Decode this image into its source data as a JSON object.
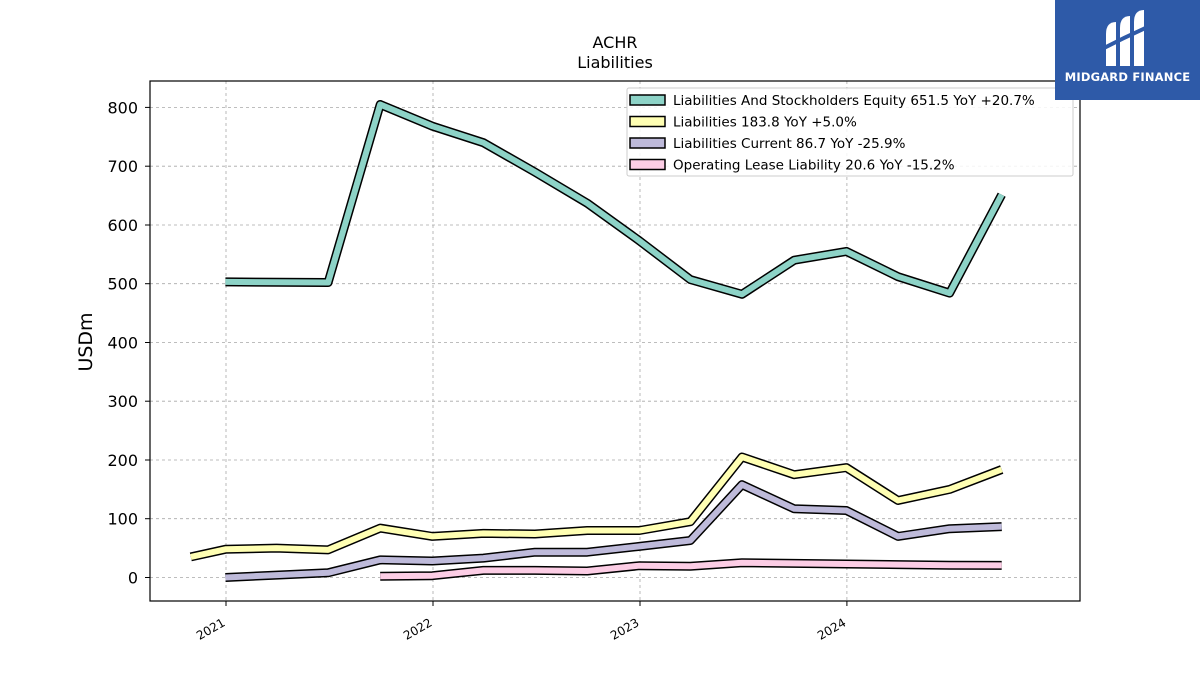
{
  "brand": {
    "name": "MIDGARD FINANCE",
    "logo_icon": "midgard-m-logo-icon",
    "logo_bg": "#2e5aa8"
  },
  "chart_data": {
    "type": "line",
    "title": "ACHR",
    "subtitle": "Liabilities",
    "ylabel": "USDm",
    "xlabel": "",
    "ylim": [
      -40,
      845
    ],
    "xlim": [
      "2020-08-20",
      "2025-02-15"
    ],
    "yticks": [
      0,
      100,
      200,
      300,
      400,
      500,
      600,
      700,
      800
    ],
    "xticks": [
      {
        "date": "2021-01-01",
        "label": "2021"
      },
      {
        "date": "2022-01-01",
        "label": "2022"
      },
      {
        "date": "2023-01-01",
        "label": "2023"
      },
      {
        "date": "2024-01-01",
        "label": "2024"
      }
    ],
    "grid": true,
    "legend_position": "top-right",
    "series": [
      {
        "name": "Liabilities And Stockholders Equity",
        "legend": "Liabilities And Stockholders Equity  651.5 YoY +20.7%",
        "color": "#8dd3c7",
        "points": [
          [
            "2020-12-31",
            503
          ],
          [
            "2021-06-30",
            502
          ],
          [
            "2021-09-30",
            805
          ],
          [
            "2021-12-31",
            768
          ],
          [
            "2022-03-31",
            740
          ],
          [
            "2022-06-30",
            690
          ],
          [
            "2022-09-30",
            637
          ],
          [
            "2022-12-31",
            573
          ],
          [
            "2023-03-31",
            507
          ],
          [
            "2023-06-30",
            482
          ],
          [
            "2023-09-30",
            540
          ],
          [
            "2023-12-31",
            555
          ],
          [
            "2024-03-31",
            512
          ],
          [
            "2024-06-30",
            484
          ],
          [
            "2024-09-30",
            651.5
          ]
        ]
      },
      {
        "name": "Liabilities",
        "legend": "Liabilities  183.8 YoY +5.0%",
        "color": "#ffffb3",
        "points": [
          [
            "2020-10-31",
            35
          ],
          [
            "2020-12-31",
            48
          ],
          [
            "2021-03-31",
            50
          ],
          [
            "2021-06-30",
            47
          ],
          [
            "2021-09-30",
            84
          ],
          [
            "2021-12-31",
            70
          ],
          [
            "2022-03-31",
            75
          ],
          [
            "2022-06-30",
            74
          ],
          [
            "2022-09-30",
            80
          ],
          [
            "2022-12-31",
            80
          ],
          [
            "2023-03-31",
            95
          ],
          [
            "2023-06-30",
            205
          ],
          [
            "2023-09-30",
            175
          ],
          [
            "2023-12-31",
            187
          ],
          [
            "2024-03-31",
            131
          ],
          [
            "2024-06-30",
            150
          ],
          [
            "2024-09-30",
            183.8
          ]
        ]
      },
      {
        "name": "Liabilities Current",
        "legend": "Liabilities Current  86.7 YoY -25.9%",
        "color": "#bebada",
        "points": [
          [
            "2020-12-31",
            0
          ],
          [
            "2021-03-31",
            4
          ],
          [
            "2021-06-30",
            8
          ],
          [
            "2021-09-30",
            30
          ],
          [
            "2021-12-31",
            28
          ],
          [
            "2022-03-31",
            33
          ],
          [
            "2022-06-30",
            43
          ],
          [
            "2022-09-30",
            43
          ],
          [
            "2022-12-31",
            53
          ],
          [
            "2023-03-31",
            63
          ],
          [
            "2023-06-30",
            158
          ],
          [
            "2023-09-30",
            117
          ],
          [
            "2023-12-31",
            114
          ],
          [
            "2024-03-31",
            70
          ],
          [
            "2024-06-30",
            83
          ],
          [
            "2024-09-30",
            86.7
          ]
        ]
      },
      {
        "name": "Operating Lease Liability",
        "legend": "Operating Lease Liability  20.6 YoY -15.2%",
        "color": "#fccde5",
        "points": [
          [
            "2021-09-30",
            2
          ],
          [
            "2021-12-31",
            3
          ],
          [
            "2022-03-31",
            12
          ],
          [
            "2022-06-30",
            12
          ],
          [
            "2022-09-30",
            11
          ],
          [
            "2022-12-31",
            20
          ],
          [
            "2023-03-31",
            19
          ],
          [
            "2023-06-30",
            25
          ],
          [
            "2023-09-30",
            24
          ],
          [
            "2023-12-31",
            23
          ],
          [
            "2024-03-31",
            22
          ],
          [
            "2024-06-30",
            21
          ],
          [
            "2024-09-30",
            20.6
          ]
        ]
      }
    ]
  }
}
